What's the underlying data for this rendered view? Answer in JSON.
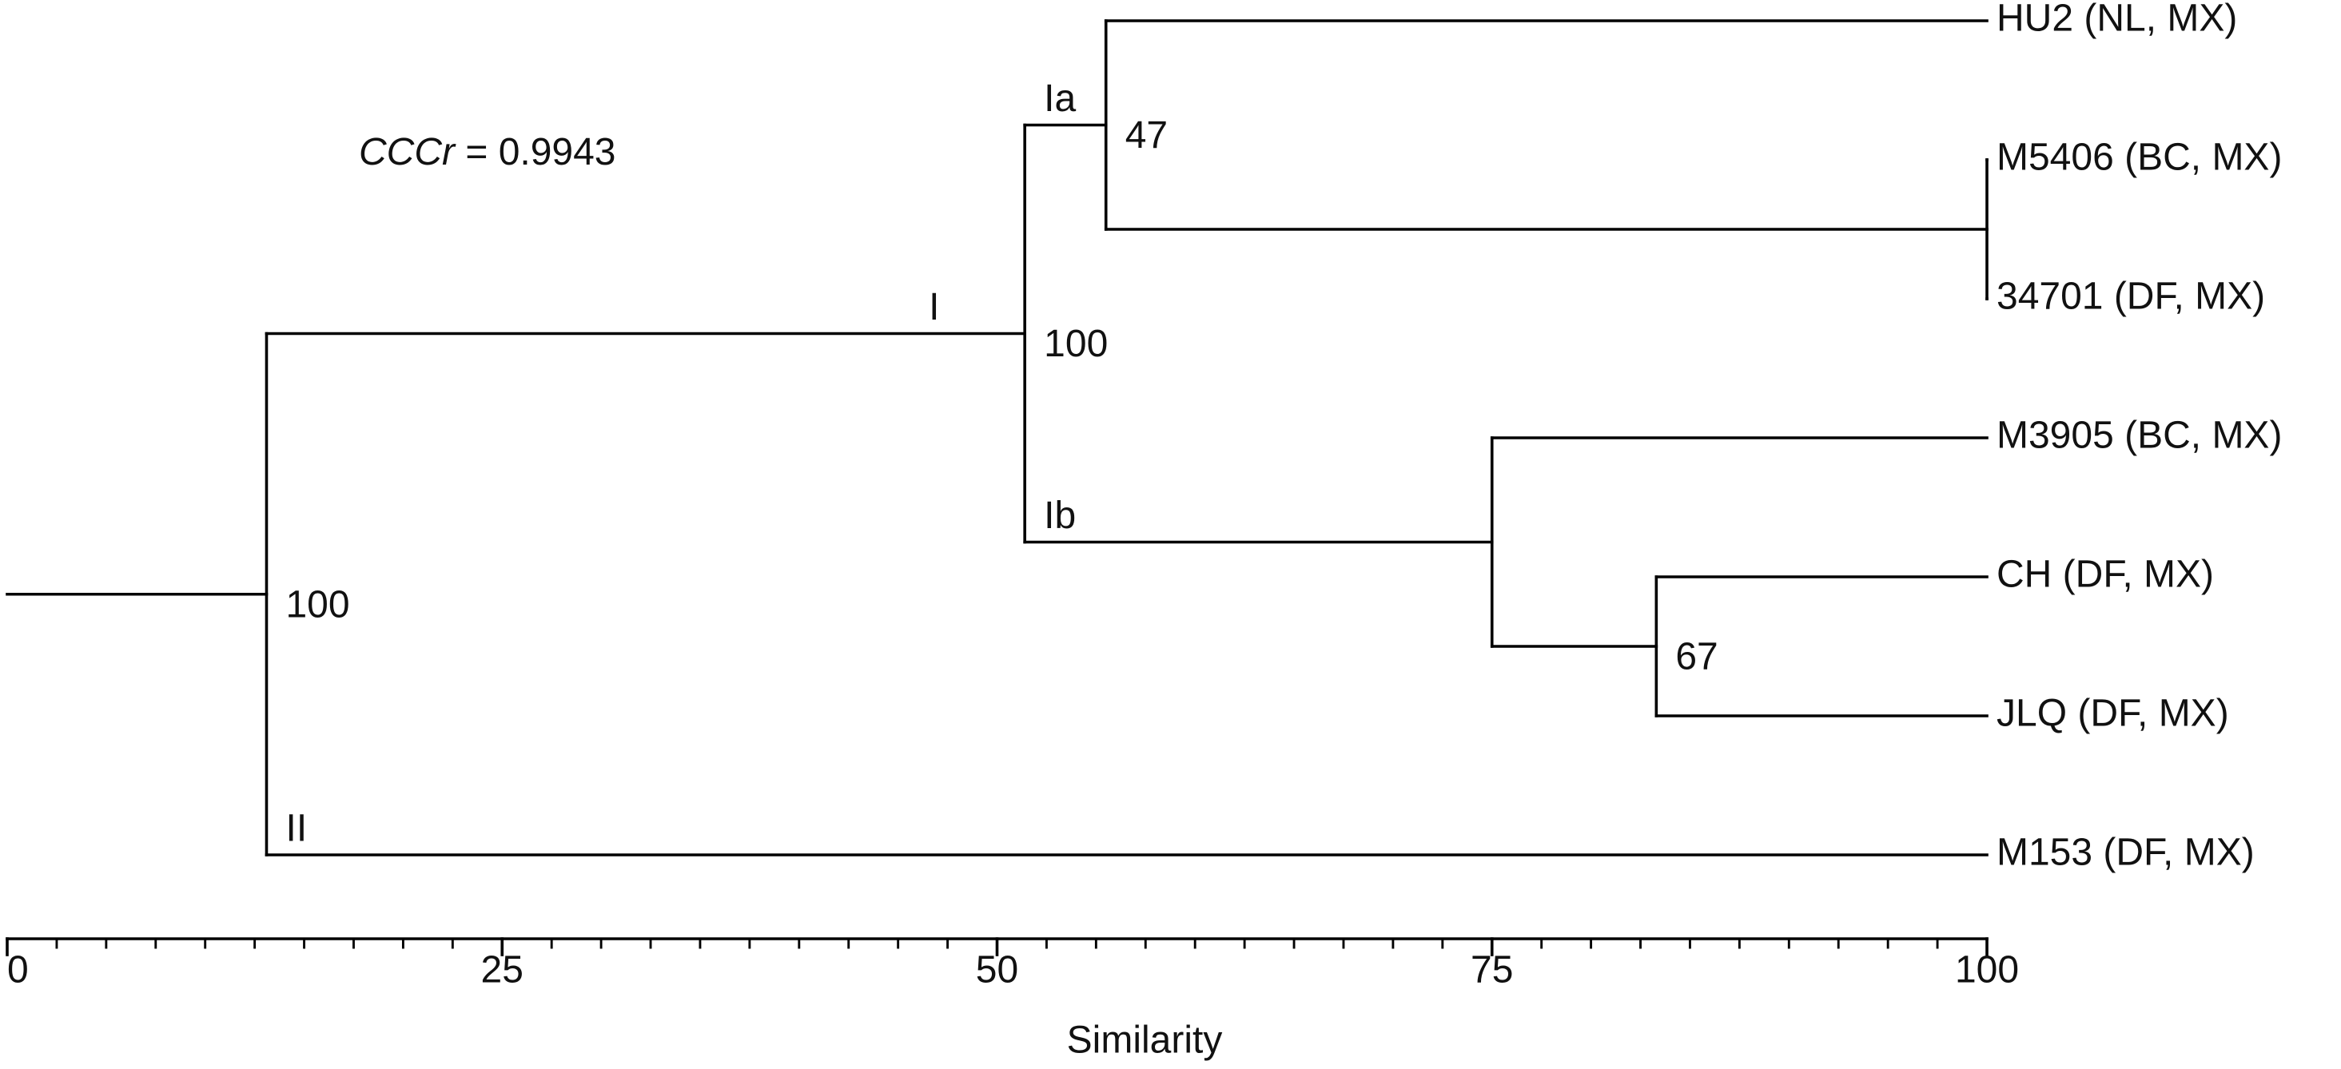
{
  "chart_data": {
    "type": "dendrogram",
    "annotation": {
      "symbol": "CCCr",
      "text": " = 0.9943"
    },
    "xlabel": "Similarity",
    "xlim": [
      0,
      100
    ],
    "xticks": [
      0,
      25,
      50,
      75,
      100
    ],
    "xminor_ticks": [
      2.5,
      5,
      7.5,
      10,
      12.5,
      15,
      17.5,
      20,
      22.5,
      27.5,
      30,
      32.5,
      35,
      37.5,
      40,
      42.5,
      45,
      47.5,
      52.5,
      55,
      57.5,
      60,
      62.5,
      65,
      67.5,
      70,
      72.5,
      77.5,
      80,
      82.5,
      85,
      87.5,
      90,
      92.5,
      95,
      97.5
    ],
    "color": "#000000",
    "tree": {
      "height": 13.1,
      "support": 100,
      "children": [
        {
          "clade": "I",
          "height": 51.4,
          "support": 100,
          "children": [
            {
              "clade": "Ia",
              "height": 55.5,
              "support": 47,
              "children": [
                {
                  "name": "HU2 (NL, MX)"
                },
                {
                  "height": 100,
                  "children": [
                    {
                      "name": "M5406 (BC, MX)"
                    },
                    {
                      "name": "34701 (DF, MX)"
                    }
                  ]
                }
              ]
            },
            {
              "clade": "Ib",
              "height": 75.0,
              "children": [
                {
                  "name": "M3905 (BC, MX)"
                },
                {
                  "height": 83.3,
                  "support": 67,
                  "children": [
                    {
                      "name": "CH (DF, MX)"
                    },
                    {
                      "name": "JLQ (DF, MX)"
                    }
                  ]
                }
              ]
            }
          ]
        },
        {
          "clade": "II",
          "name": "M153 (DF, MX)"
        }
      ]
    }
  }
}
